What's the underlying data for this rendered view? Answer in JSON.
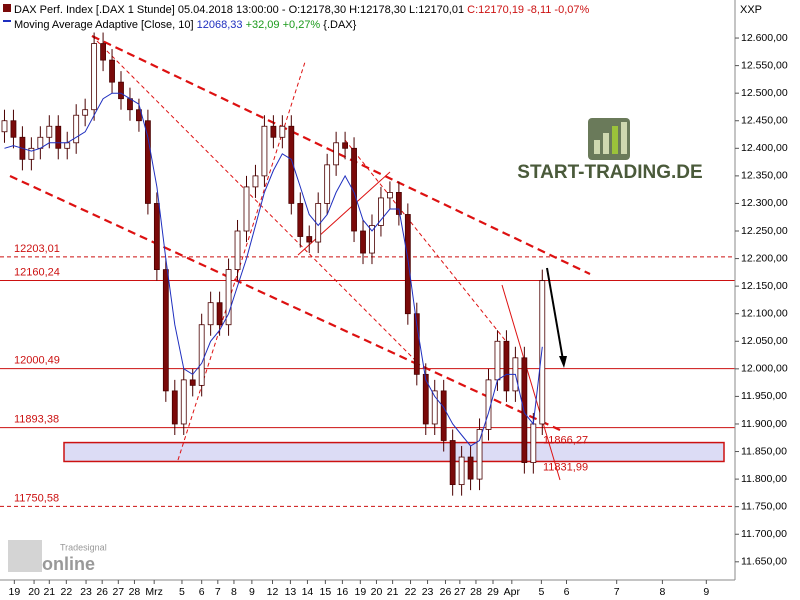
{
  "chart_data": {
    "type": "candlestick",
    "header": [
      "DAX Perf. Index [.DAX  1 Stunde] 05.04.2018 13:00:00 - O:12178,30 H:12178,30 L:12170,01",
      "C:12170,19 -8,11 -0,07%",
      "Moving Average Adaptive [Close, 10]",
      "12068,33",
      "+32,09 +0,27%",
      "{.DAX}"
    ],
    "axis_title": "XXP",
    "watermark": [
      "START-TRADING.DE",
      "Tradesignal",
      "online"
    ],
    "x": [
      0.5,
      1.5,
      2.5,
      3.5,
      4.5,
      5.5,
      6.5,
      7.5,
      8.5,
      9.5,
      10.5,
      11.5,
      12.5,
      13.5,
      14.5,
      15.5,
      16.5,
      17.5,
      18.5,
      19.5,
      20.5,
      21.5,
      22.5,
      23.5,
      24.5,
      25.5,
      26.5,
      27.5,
      28.5,
      29.5,
      30.5,
      31.5,
      32.5,
      33.5,
      34.5,
      35.5,
      36.5,
      37.5,
      38.5,
      39.5,
      40.5,
      41.5,
      42.5,
      43.5,
      44.5,
      45.5,
      46.5,
      47.5,
      48.5,
      49.5,
      50.5,
      51.5,
      52.5,
      53.5,
      54.5,
      55.5,
      56.5,
      57.5,
      58.5,
      59.5,
      60.5
    ],
    "open": [
      12430,
      12450,
      12420,
      12380,
      12400,
      12420,
      12440,
      12400,
      12410,
      12460,
      12470,
      12590,
      12560,
      12520,
      12490,
      12470,
      12450,
      12300,
      12180,
      11960,
      11900,
      11980,
      11970,
      12080,
      12120,
      12080,
      12180,
      12250,
      12330,
      12350,
      12440,
      12420,
      12440,
      12300,
      12240,
      12230,
      12300,
      12370,
      12410,
      12400,
      12250,
      12210,
      12260,
      12310,
      12320,
      12280,
      12100,
      11990,
      11900,
      11960,
      11870,
      11790,
      11840,
      11800,
      11890,
      11980,
      12050,
      11960,
      12020,
      11830,
      11900
    ],
    "high": [
      12470,
      12470,
      12440,
      12420,
      12440,
      12460,
      12460,
      12430,
      12480,
      12490,
      12610,
      12610,
      12580,
      12540,
      12510,
      12490,
      12470,
      12320,
      12200,
      11980,
      12000,
      12000,
      12100,
      12140,
      12140,
      12200,
      12270,
      12350,
      12370,
      12460,
      12460,
      12460,
      12460,
      12320,
      12260,
      12320,
      12390,
      12430,
      12430,
      12420,
      12270,
      12280,
      12330,
      12340,
      12340,
      12300,
      12120,
      12010,
      11980,
      11980,
      11890,
      11860,
      11860,
      11910,
      12000,
      12070,
      12070,
      12040,
      12040,
      11920,
      12180
    ],
    "low": [
      12410,
      12400,
      12360,
      12360,
      12380,
      12400,
      12380,
      12380,
      12390,
      12440,
      12450,
      12540,
      12500,
      12470,
      12450,
      12430,
      12280,
      12160,
      11940,
      11880,
      11880,
      11950,
      11950,
      12060,
      12060,
      12060,
      12160,
      12230,
      12310,
      12330,
      12400,
      12400,
      12280,
      12220,
      12210,
      12210,
      12280,
      12350,
      12380,
      12230,
      12190,
      12190,
      12240,
      12290,
      12260,
      12080,
      11970,
      11880,
      11880,
      11850,
      11770,
      11770,
      11780,
      11780,
      11870,
      11960,
      11940,
      11940,
      11810,
      11810,
      11880
    ],
    "close": [
      12450,
      12420,
      12380,
      12400,
      12420,
      12440,
      12400,
      12410,
      12460,
      12470,
      12590,
      12560,
      12520,
      12490,
      12470,
      12450,
      12300,
      12180,
      11960,
      11900,
      11980,
      11970,
      12080,
      12120,
      12080,
      12180,
      12250,
      12330,
      12350,
      12440,
      12420,
      12440,
      12300,
      12240,
      12230,
      12300,
      12370,
      12410,
      12400,
      12250,
      12210,
      12260,
      12310,
      12320,
      12280,
      12100,
      11990,
      11900,
      11960,
      11870,
      11790,
      11840,
      11800,
      11890,
      11980,
      12050,
      11960,
      12020,
      11830,
      11900,
      12160
    ],
    "up_color": "#ffffff",
    "down_color": "#7a0a0a",
    "wick_color": "#4a0000",
    "series": [
      {
        "name": "Moving Average Adaptive [Close, 10]",
        "color": "#1f2fbf",
        "values": [
          12400,
          12405,
          12400,
          12395,
          12400,
          12410,
          12410,
          12410,
          12420,
          12430,
          12460,
          12490,
          12500,
          12500,
          12490,
          12480,
          12420,
          12330,
          12200,
          12080,
          12000,
          11990,
          12010,
          12050,
          12070,
          12100,
          12150,
          12200,
          12260,
          12320,
          12360,
          12390,
          12380,
          12330,
          12280,
          12260,
          12280,
          12320,
          12350,
          12320,
          12270,
          12250,
          12270,
          12290,
          12290,
          12200,
          12080,
          11980,
          11950,
          11930,
          11900,
          11880,
          11860,
          11870,
          11920,
          11980,
          11990,
          11990,
          11920,
          11900,
          12040
        ]
      }
    ],
    "levels": [
      {
        "value": 12203.01,
        "label": "12203,01",
        "dashed": true
      },
      {
        "value": 12160.24,
        "label": "12160,24",
        "dashed": false
      },
      {
        "value": 12000.49,
        "label": "12000,49",
        "dashed": false
      },
      {
        "value": 11893.38,
        "label": "11893,38",
        "dashed": false
      },
      {
        "value": 11750.58,
        "label": "11750,58",
        "dashed": true
      }
    ],
    "level_color": "#cc1111",
    "zone": [
      {
        "value": 11866.27,
        "label": "11866,27"
      },
      {
        "value": 11831.99,
        "label": "11831,99"
      }
    ],
    "zone_color": "#dcdcf5",
    "xlim": [
      0,
      82
    ],
    "xticks": [
      {
        "value": 1.6,
        "label": "19"
      },
      {
        "value": 3.8,
        "label": "20"
      },
      {
        "value": 5.5,
        "label": "21"
      },
      {
        "value": 7.4,
        "label": "22"
      },
      {
        "value": 9.6,
        "label": "23"
      },
      {
        "value": 11.4,
        "label": "26"
      },
      {
        "value": 13.2,
        "label": "27"
      },
      {
        "value": 15,
        "label": "28"
      },
      {
        "value": 17.2,
        "label": "Mrz"
      },
      {
        "value": 20.3,
        "label": "5"
      },
      {
        "value": 22.5,
        "label": "6"
      },
      {
        "value": 24.3,
        "label": "7"
      },
      {
        "value": 26.1,
        "label": "8"
      },
      {
        "value": 28.1,
        "label": "9"
      },
      {
        "value": 30.4,
        "label": "12"
      },
      {
        "value": 32.4,
        "label": "13"
      },
      {
        "value": 34.3,
        "label": "14"
      },
      {
        "value": 36.3,
        "label": "15"
      },
      {
        "value": 38.2,
        "label": "16"
      },
      {
        "value": 40.2,
        "label": "19"
      },
      {
        "value": 42,
        "label": "20"
      },
      {
        "value": 43.8,
        "label": "21"
      },
      {
        "value": 45.8,
        "label": "22"
      },
      {
        "value": 47.7,
        "label": "23"
      },
      {
        "value": 49.7,
        "label": "26"
      },
      {
        "value": 51.3,
        "label": "27"
      },
      {
        "value": 53.1,
        "label": "28"
      },
      {
        "value": 55,
        "label": "29"
      },
      {
        "value": 57.1,
        "label": "Apr"
      },
      {
        "value": 60.4,
        "label": "5"
      },
      {
        "value": 63.2,
        "label": "6"
      },
      {
        "value": 68.8,
        "label": "7"
      },
      {
        "value": 73.9,
        "label": "8"
      },
      {
        "value": 78.8,
        "label": "9"
      }
    ],
    "ylim": [
      11617,
      12669
    ],
    "yticks": [
      {
        "value": 11650,
        "label": "11.650,00"
      },
      {
        "value": 11700,
        "label": "11.700,00"
      },
      {
        "value": 11750,
        "label": "11.750,00"
      },
      {
        "value": 11800,
        "label": "11.800,00"
      },
      {
        "value": 11850,
        "label": "11.850,00"
      },
      {
        "value": 11900,
        "label": "11.900,00"
      },
      {
        "value": 11950,
        "label": "11.950,00"
      },
      {
        "value": 12000,
        "label": "12.000,00"
      },
      {
        "value": 12050,
        "label": "12.050,00"
      },
      {
        "value": 12100,
        "label": "12.100,00"
      },
      {
        "value": 12150,
        "label": "12.150,00"
      },
      {
        "value": 12200,
        "label": "12.200,00"
      },
      {
        "value": 12250,
        "label": "12.250,00"
      },
      {
        "value": 12300,
        "label": "12.300,00"
      },
      {
        "value": 12350,
        "label": "12.350,00"
      },
      {
        "value": 12400,
        "label": "12.400,00"
      },
      {
        "value": 12450,
        "label": "12.450,00"
      },
      {
        "value": 12500,
        "label": "12.500,00"
      },
      {
        "value": 12550,
        "label": "12.550,00"
      },
      {
        "value": 12600,
        "label": "12.600,00"
      }
    ]
  }
}
